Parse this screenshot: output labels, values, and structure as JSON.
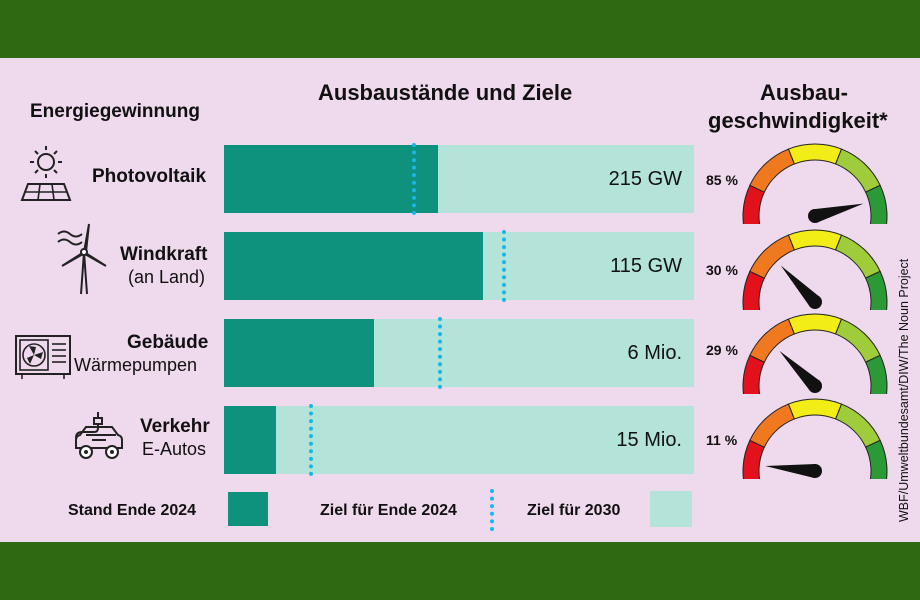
{
  "header": {
    "category_title": "Energiegewinnung",
    "main_title": "Ausbaustände und Ziele",
    "speed_title_line1": "Ausbau-",
    "speed_title_line2": "geschwindigkeit*"
  },
  "rows": [
    {
      "title": "Photovoltaik",
      "subtitle": "",
      "icon": "solar-panel-icon",
      "value_label": "215 GW",
      "stand_fraction": 0.456,
      "target_2024_fraction": 0.405,
      "speed_label": "85 %",
      "speed": 0.85
    },
    {
      "title": "Windkraft",
      "subtitle": "(an Land)",
      "icon": "wind-turbine-icon",
      "value_label": "115 GW",
      "stand_fraction": 0.552,
      "target_2024_fraction": 0.596,
      "speed_label": "30 %",
      "speed": 0.3
    },
    {
      "title": "Gebäude",
      "subtitle": "Wärmepumpen",
      "icon": "heat-pump-icon",
      "value_label": "6 Mio.",
      "stand_fraction": 0.32,
      "target_2024_fraction": 0.46,
      "speed_label": "29 %",
      "speed": 0.29
    },
    {
      "title": "Verkehr",
      "subtitle": "E-Autos",
      "icon": "electric-car-icon",
      "value_label": "15 Mio.",
      "stand_fraction": 0.11,
      "target_2024_fraction": 0.186,
      "speed_label": "11 %",
      "speed": 0.11
    }
  ],
  "legend": {
    "stand": "Stand Ende 2024",
    "target_2024": "Ziel für Ende 2024",
    "target_2030": "Ziel für 2030"
  },
  "source": "WBF/Umweltbundesamt/DIW/The Noun Project",
  "colors": {
    "stand": "#0e917d",
    "target_2030": "#b4e3da",
    "target_2024": "#19b6ec",
    "panel_bg": "#efd9ec",
    "frame": "#2d6a12",
    "gauge": [
      "#e3111b",
      "#f0781e",
      "#f2ec17",
      "#9fcc3b",
      "#2b9a36"
    ]
  },
  "chart_data": {
    "type": "bar",
    "title": "Ausbaustände und Ziele",
    "categories": [
      "Photovoltaik",
      "Windkraft (an Land)",
      "Gebäude Wärmepumpen",
      "Verkehr E-Autos"
    ],
    "target_2030_labels": [
      "215 GW",
      "115 GW",
      "6 Mio.",
      "15 Mio."
    ],
    "series": [
      {
        "name": "Stand Ende 2024",
        "values": [
          0.456,
          0.552,
          0.32,
          0.11
        ]
      },
      {
        "name": "Ziel für Ende 2024",
        "values": [
          0.405,
          0.596,
          0.46,
          0.186
        ]
      },
      {
        "name": "Ziel für 2030",
        "values": [
          1,
          1,
          1,
          1
        ]
      }
    ],
    "gauge_title": "Ausbaugeschwindigkeit*",
    "gauge_values": [
      85,
      30,
      29,
      11
    ],
    "legend_position": "bottom"
  }
}
